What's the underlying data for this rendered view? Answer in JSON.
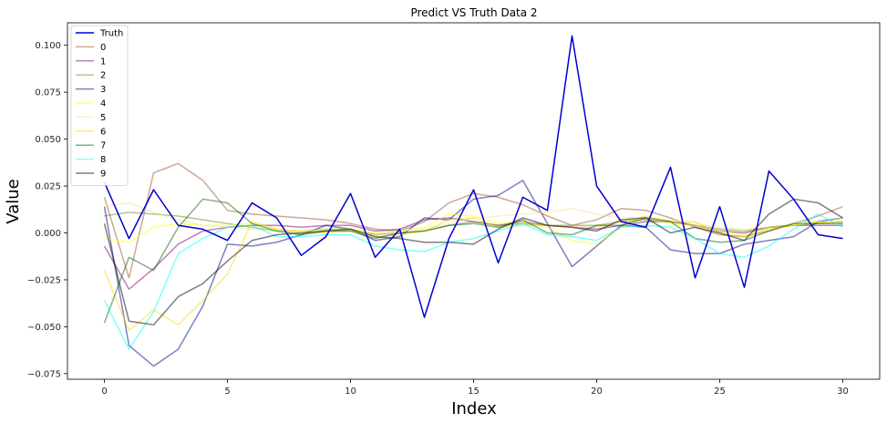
{
  "chart_data": {
    "type": "line",
    "title": "Predict VS Truth Data 2",
    "xlabel": "Index",
    "ylabel": "Value",
    "xlim": [
      -1.5,
      31.5
    ],
    "ylim": [
      -0.078,
      0.112
    ],
    "xticks": [
      0,
      5,
      10,
      15,
      20,
      25,
      30
    ],
    "yticks": [
      -0.075,
      -0.05,
      -0.025,
      0.0,
      0.025,
      0.05,
      0.075,
      0.1
    ],
    "ytick_labels": [
      "−0.075",
      "−0.050",
      "−0.025",
      "0.000",
      "0.025",
      "0.050",
      "0.075",
      "0.100"
    ],
    "grid": false,
    "legend": "top-left",
    "x": [
      0,
      1,
      2,
      3,
      4,
      5,
      6,
      7,
      8,
      9,
      10,
      11,
      12,
      13,
      14,
      15,
      16,
      17,
      18,
      19,
      20,
      21,
      22,
      23,
      24,
      25,
      26,
      27,
      28,
      29,
      30
    ],
    "series": [
      {
        "name": "Truth",
        "color": "#0000cd",
        "alpha": 1.0,
        "width": 1.5,
        "values": [
          0.027,
          -0.003,
          0.023,
          0.004,
          0.002,
          -0.004,
          0.016,
          0.008,
          -0.012,
          -0.002,
          0.021,
          -0.013,
          0.002,
          -0.045,
          -0.003,
          0.023,
          -0.016,
          0.019,
          0.012,
          0.105,
          0.025,
          0.006,
          0.003,
          0.035,
          -0.024,
          0.014,
          -0.029,
          0.033,
          0.018,
          -0.001,
          -0.003
        ]
      },
      {
        "name": "0",
        "color": "#a0522d",
        "alpha": 0.5,
        "width": 1.5,
        "values": [
          0.019,
          -0.024,
          0.032,
          0.037,
          0.028,
          0.012,
          0.01,
          0.009,
          0.008,
          0.007,
          0.005,
          0.002,
          0.001,
          0.006,
          0.016,
          0.021,
          0.019,
          0.015,
          0.009,
          0.004,
          0.007,
          0.013,
          0.012,
          0.008,
          0.003,
          -0.001,
          -0.002,
          0.001,
          0.005,
          0.009,
          0.014
        ]
      },
      {
        "name": "1",
        "color": "#800080",
        "alpha": 0.5,
        "width": 1.5,
        "values": [
          -0.007,
          -0.03,
          -0.019,
          -0.006,
          0.001,
          0.003,
          0.004,
          0.004,
          0.003,
          0.004,
          0.004,
          0.001,
          0.002,
          0.007,
          0.008,
          0.006,
          0.004,
          0.006,
          0.004,
          0.003,
          0.002,
          0.004,
          0.006,
          0.006,
          0.004,
          0.001,
          0.0,
          0.003,
          0.004,
          0.004,
          0.004
        ]
      },
      {
        "name": "2",
        "color": "#6b8e23",
        "alpha": 0.5,
        "width": 1.5,
        "values": [
          0.009,
          0.011,
          0.01,
          0.009,
          0.007,
          0.005,
          0.003,
          0.001,
          0.001,
          0.002,
          0.002,
          -0.001,
          0.0,
          0.001,
          0.004,
          0.006,
          0.004,
          0.005,
          0.004,
          0.004,
          0.004,
          0.006,
          0.007,
          0.006,
          0.004,
          0.002,
          0.001,
          0.003,
          0.004,
          0.005,
          0.006
        ]
      },
      {
        "name": "3",
        "color": "#000080",
        "alpha": 0.5,
        "width": 1.5,
        "values": [
          0.014,
          -0.06,
          -0.071,
          -0.062,
          -0.039,
          -0.006,
          -0.007,
          -0.005,
          -0.001,
          0.004,
          0.002,
          -0.004,
          -0.002,
          0.008,
          0.007,
          0.018,
          0.02,
          0.028,
          0.005,
          -0.018,
          -0.007,
          0.004,
          0.003,
          -0.009,
          -0.011,
          -0.011,
          -0.006,
          -0.004,
          -0.002,
          0.006,
          0.008
        ]
      },
      {
        "name": "4",
        "color": "#ffff00",
        "alpha": 0.5,
        "width": 1.5,
        "values": [
          -0.003,
          -0.005,
          0.003,
          0.005,
          0.004,
          0.004,
          0.005,
          0.002,
          0.001,
          0.002,
          0.002,
          0.0,
          0.001,
          0.003,
          0.01,
          0.009,
          0.005,
          0.006,
          0.003,
          -0.004,
          -0.006,
          0.003,
          0.008,
          0.005,
          0.004,
          0.001,
          -0.001,
          0.002,
          0.004,
          0.006,
          0.005
        ]
      },
      {
        "name": "5",
        "color": "#f0e68c",
        "alpha": 0.5,
        "width": 1.5,
        "values": [
          0.014,
          0.016,
          0.011,
          0.007,
          0.004,
          0.003,
          0.002,
          0.001,
          0.001,
          0.001,
          0.001,
          0.0,
          0.001,
          0.002,
          0.005,
          0.008,
          0.009,
          0.01,
          0.011,
          0.013,
          0.01,
          0.008,
          0.008,
          0.007,
          0.005,
          0.003,
          0.002,
          0.003,
          0.005,
          0.007,
          0.008
        ]
      },
      {
        "name": "6",
        "color": "#ffd700",
        "alpha": 0.5,
        "width": 1.5,
        "values": [
          -0.02,
          -0.052,
          -0.041,
          -0.049,
          -0.036,
          -0.022,
          0.006,
          0.002,
          0.0,
          0.0,
          0.001,
          -0.002,
          -0.001,
          0.001,
          0.007,
          0.008,
          0.003,
          0.004,
          0.004,
          0.003,
          0.003,
          0.006,
          0.009,
          0.006,
          0.006,
          0.0,
          -0.002,
          0.002,
          0.004,
          0.006,
          0.005
        ]
      },
      {
        "name": "7",
        "color": "#006400",
        "alpha": 0.5,
        "width": 1.5,
        "values": [
          -0.048,
          -0.013,
          -0.02,
          0.003,
          0.018,
          0.016,
          0.005,
          0.001,
          -0.001,
          0.001,
          0.001,
          -0.003,
          0.0,
          0.001,
          0.004,
          0.005,
          0.003,
          0.007,
          0.0,
          -0.001,
          0.004,
          0.004,
          0.008,
          0.006,
          -0.003,
          -0.005,
          -0.004,
          0.001,
          0.005,
          0.005,
          0.005
        ]
      },
      {
        "name": "8",
        "color": "#00ffff",
        "alpha": 0.5,
        "width": 1.5,
        "values": [
          -0.036,
          -0.062,
          -0.042,
          -0.011,
          -0.003,
          0.003,
          0.004,
          -0.002,
          -0.002,
          -0.001,
          -0.001,
          -0.007,
          -0.009,
          -0.01,
          -0.005,
          -0.003,
          0.001,
          0.005,
          -0.001,
          -0.002,
          -0.004,
          0.003,
          0.004,
          0.003,
          -0.003,
          -0.011,
          -0.013,
          -0.007,
          0.002,
          0.01,
          0.003
        ]
      },
      {
        "name": "9",
        "color": "#000000",
        "alpha": 0.5,
        "width": 1.5,
        "values": [
          0.005,
          -0.047,
          -0.049,
          -0.034,
          -0.027,
          -0.015,
          -0.004,
          -0.001,
          0.0,
          0.001,
          0.002,
          -0.002,
          -0.003,
          -0.005,
          -0.005,
          -0.006,
          0.002,
          0.008,
          0.004,
          0.003,
          0.001,
          0.007,
          0.008,
          0.0,
          0.003,
          0.0,
          -0.004,
          0.01,
          0.018,
          0.016,
          0.008
        ]
      }
    ]
  }
}
